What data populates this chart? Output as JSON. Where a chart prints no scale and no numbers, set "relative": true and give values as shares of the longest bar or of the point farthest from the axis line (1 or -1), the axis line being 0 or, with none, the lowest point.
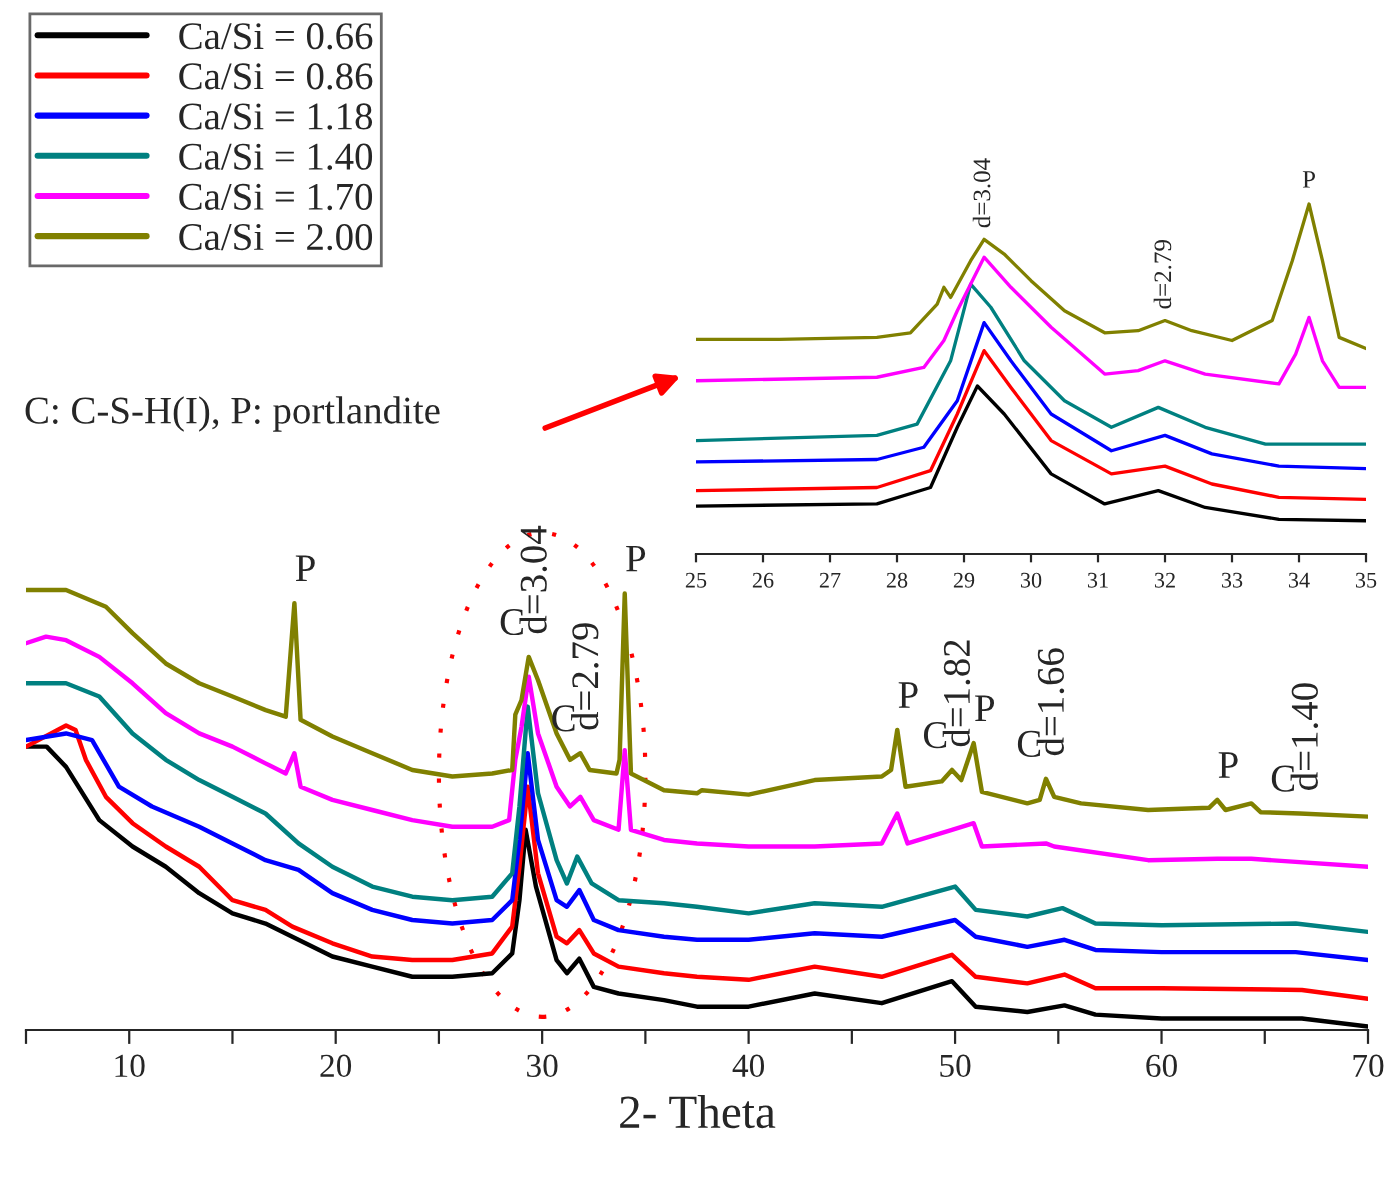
{
  "chart_data": [
    {
      "type": "line",
      "relative": true,
      "xlabel": "2- Theta",
      "xlim": [
        5,
        70
      ],
      "xticks": [
        {
          "value": 5,
          "label": null
        },
        10,
        {
          "value": 15,
          "label": null
        },
        20,
        {
          "value": 25,
          "label": null
        },
        30,
        {
          "value": 35,
          "label": null
        },
        40,
        {
          "value": 45,
          "label": null
        },
        50,
        {
          "value": 55,
          "label": null
        },
        60,
        {
          "value": 65,
          "label": null
        },
        70
      ],
      "legend": "top left",
      "series": [
        {
          "name": "Ca/Si = 0.66",
          "color": "#000000",
          "x": [
            5,
            6,
            6.94,
            8.55,
            10.16,
            11.77,
            13.39,
            15,
            16.6,
            17.9,
            19.84,
            21.77,
            23.71,
            25.65,
            27.58,
            28.55,
            28.9,
            29.2,
            29.7,
            30.7,
            31.2,
            31.8,
            32.5,
            33.7,
            35.9,
            37.5,
            40,
            43.2,
            46.45,
            49.85,
            51,
            53.5,
            55.3,
            56.8,
            60,
            66.8,
            70
          ],
          "values": [
            0.644,
            0.644,
            0.598,
            0.477,
            0.417,
            0.371,
            0.311,
            0.265,
            0.242,
            0.212,
            0.167,
            0.144,
            0.121,
            0.121,
            0.129,
            0.174,
            0.295,
            0.455,
            0.326,
            0.159,
            0.129,
            0.162,
            0.098,
            0.083,
            0.068,
            0.053,
            0.053,
            0.083,
            0.061,
            0.111,
            0.053,
            0.041,
            0.056,
            0.035,
            0.026,
            0.026,
            0.008
          ]
        },
        {
          "name": "Ca/Si = 0.86",
          "color": "#ff0000",
          "x": [
            5,
            6.94,
            7.4,
            7.9,
            8.87,
            10.16,
            11.77,
            13.39,
            15,
            16.6,
            17.9,
            19.84,
            21.77,
            23.71,
            25.65,
            27.58,
            28.55,
            28.9,
            29.3,
            29.8,
            30.7,
            31.2,
            31.8,
            32.5,
            33.7,
            35.9,
            37.5,
            40,
            43.2,
            46.45,
            49.85,
            51,
            53.5,
            55.3,
            56.8,
            60,
            66.8,
            70
          ],
          "values": [
            0.644,
            0.692,
            0.682,
            0.614,
            0.53,
            0.47,
            0.417,
            0.371,
            0.295,
            0.273,
            0.235,
            0.197,
            0.167,
            0.159,
            0.159,
            0.174,
            0.235,
            0.371,
            0.553,
            0.356,
            0.212,
            0.197,
            0.227,
            0.174,
            0.144,
            0.129,
            0.121,
            0.114,
            0.144,
            0.121,
            0.171,
            0.121,
            0.106,
            0.126,
            0.095,
            0.095,
            0.091,
            0.071
          ]
        },
        {
          "name": "Ca/Si = 1.18",
          "color": "#0000ff",
          "x": [
            5,
            6.94,
            8.2,
            9.5,
            11.1,
            13.39,
            15,
            16.6,
            18.2,
            19.84,
            21.77,
            23.71,
            25.65,
            27.58,
            28.55,
            28.9,
            29.3,
            29.8,
            30.7,
            31.2,
            31.8,
            32.5,
            33.7,
            35.9,
            37.5,
            40,
            43.2,
            46.45,
            50,
            51,
            53.5,
            55.3,
            56.8,
            60,
            66.5,
            70
          ],
          "values": [
            0.659,
            0.674,
            0.659,
            0.553,
            0.508,
            0.462,
            0.424,
            0.386,
            0.364,
            0.311,
            0.273,
            0.25,
            0.242,
            0.25,
            0.295,
            0.432,
            0.629,
            0.432,
            0.295,
            0.28,
            0.318,
            0.25,
            0.227,
            0.212,
            0.205,
            0.205,
            0.22,
            0.212,
            0.25,
            0.212,
            0.189,
            0.205,
            0.182,
            0.177,
            0.177,
            0.159
          ]
        },
        {
          "name": "Ca/Si = 1.40",
          "color": "#008080",
          "x": [
            5,
            6.94,
            8.55,
            10.16,
            11.77,
            13.39,
            15,
            16.6,
            18.2,
            19.84,
            21.77,
            23.71,
            25.65,
            27.58,
            28.55,
            28.9,
            29.3,
            29.8,
            30.7,
            31.2,
            31.7,
            32.4,
            33.7,
            35.9,
            37.5,
            40,
            43.2,
            46.45,
            50,
            51,
            53.5,
            55.2,
            56.8,
            60,
            66.5,
            70
          ],
          "values": [
            0.788,
            0.788,
            0.758,
            0.674,
            0.614,
            0.568,
            0.53,
            0.492,
            0.424,
            0.371,
            0.326,
            0.303,
            0.295,
            0.303,
            0.356,
            0.508,
            0.735,
            0.538,
            0.386,
            0.333,
            0.394,
            0.333,
            0.295,
            0.288,
            0.28,
            0.265,
            0.288,
            0.28,
            0.326,
            0.273,
            0.258,
            0.277,
            0.242,
            0.238,
            0.242,
            0.223
          ]
        },
        {
          "name": "Ca/Si = 1.70",
          "color": "#ff00ff",
          "x": [
            5,
            5.97,
            6.94,
            8.55,
            10.16,
            11.77,
            13.39,
            15,
            16.6,
            17.58,
            18,
            18.3,
            19.84,
            21.77,
            23.71,
            25.65,
            27.58,
            28.4,
            28.7,
            29,
            29.35,
            29.8,
            30.7,
            31.35,
            31.85,
            32.5,
            33.7,
            34,
            34.3,
            35.9,
            37.5,
            40,
            43.2,
            46.45,
            47.2,
            47.7,
            49.85,
            50.9,
            51.3,
            54.4,
            54.8,
            59.35,
            62.7,
            64.35,
            70
          ],
          "values": [
            0.879,
            0.894,
            0.886,
            0.848,
            0.788,
            0.72,
            0.674,
            0.644,
            0.606,
            0.583,
            0.629,
            0.553,
            0.523,
            0.5,
            0.477,
            0.462,
            0.462,
            0.477,
            0.614,
            0.689,
            0.803,
            0.674,
            0.553,
            0.508,
            0.53,
            0.477,
            0.455,
            0.636,
            0.455,
            0.432,
            0.424,
            0.417,
            0.417,
            0.424,
            0.492,
            0.424,
            0.455,
            0.47,
            0.417,
            0.424,
            0.417,
            0.386,
            0.389,
            0.389,
            0.371
          ]
        },
        {
          "name": "Ca/Si = 2.00",
          "color": "#808000",
          "x": [
            5,
            6.94,
            8.87,
            10.16,
            11.77,
            13.39,
            15,
            16.61,
            17.58,
            18,
            18.3,
            19.84,
            21.77,
            23.71,
            25.65,
            27.58,
            28.55,
            28.7,
            29,
            29.35,
            29.8,
            30.7,
            31.35,
            31.85,
            32.3,
            33.6,
            33.75,
            34,
            34.3,
            35.9,
            37.5,
            37.74,
            40,
            43.2,
            46.45,
            46.9,
            47.2,
            47.6,
            49.35,
            49.85,
            50.3,
            50.9,
            51.3,
            53.5,
            54.1,
            54.4,
            54.8,
            56.1,
            59.35,
            62.3,
            62.7,
            63.1,
            64.35,
            64.8,
            66.7,
            70
          ],
          "values": [
            1.0,
            1.0,
            0.962,
            0.902,
            0.833,
            0.788,
            0.758,
            0.727,
            0.712,
            0.97,
            0.705,
            0.667,
            0.629,
            0.591,
            0.576,
            0.583,
            0.591,
            0.717,
            0.75,
            0.848,
            0.795,
            0.674,
            0.614,
            0.629,
            0.591,
            0.583,
            0.614,
            0.992,
            0.583,
            0.545,
            0.538,
            0.545,
            0.535,
            0.568,
            0.576,
            0.591,
            0.682,
            0.553,
            0.565,
            0.591,
            0.568,
            0.652,
            0.541,
            0.515,
            0.523,
            0.571,
            0.53,
            0.515,
            0.5,
            0.505,
            0.523,
            0.5,
            0.515,
            0.495,
            0.492,
            0.485
          ]
        }
      ],
      "annotations": [
        {
          "text": "P",
          "x": 18,
          "y": 0.97
        },
        {
          "text": "C",
          "x": 29.35,
          "y": 0.848
        },
        {
          "text": "d=3.04",
          "x": 29.35,
          "y": 0.848
        },
        {
          "text": "C",
          "x": 31.85,
          "y": 0.629
        },
        {
          "text": "d=2.79",
          "x": 31.85,
          "y": 0.629
        },
        {
          "text": "P",
          "x": 34,
          "y": 0.992
        },
        {
          "text": "P",
          "x": 47.2,
          "y": 0.682
        },
        {
          "text": "C",
          "x": 49.85,
          "y": 0.591
        },
        {
          "text": "d=1.82",
          "x": 49.85,
          "y": 0.591
        },
        {
          "text": "P",
          "x": 50.9,
          "y": 0.652
        },
        {
          "text": "C",
          "x": 54.4,
          "y": 0.571
        },
        {
          "text": "d=1.66",
          "x": 54.4,
          "y": 0.571
        },
        {
          "text": "P",
          "x": 62.7,
          "y": 0.523
        },
        {
          "text": "C",
          "x": 66.7,
          "y": 0.492
        },
        {
          "text": "d=1.40",
          "x": 66.7,
          "y": 0.492
        },
        "C: C-S-H(I), P: portlandite"
      ]
    },
    {
      "type": "line",
      "relative": true,
      "xlim": [
        25,
        35
      ],
      "xticks": [
        25,
        26,
        27,
        28,
        29,
        30,
        31,
        32,
        33,
        34,
        35
      ],
      "series": [
        {
          "color": "#000000",
          "x": [
            25,
            27.7,
            28.5,
            28.9,
            29.2,
            29.6,
            30.3,
            31.1,
            31.9,
            32.6,
            33.7,
            35
          ],
          "values": [
            0.137,
            0.143,
            0.19,
            0.362,
            0.48,
            0.4,
            0.229,
            0.143,
            0.181,
            0.133,
            0.099,
            0.095
          ]
        },
        {
          "color": "#ff0000",
          "x": [
            25,
            27.7,
            28.5,
            28.9,
            29.3,
            29.7,
            30.3,
            31.2,
            32.0,
            32.7,
            33.7,
            35
          ],
          "values": [
            0.181,
            0.19,
            0.238,
            0.4,
            0.581,
            0.476,
            0.324,
            0.229,
            0.251,
            0.2,
            0.162,
            0.156
          ]
        },
        {
          "color": "#0000ff",
          "x": [
            25,
            27.7,
            28.4,
            28.9,
            29.3,
            29.7,
            30.3,
            31.2,
            32.0,
            32.7,
            33.7,
            35
          ],
          "values": [
            0.263,
            0.27,
            0.305,
            0.438,
            0.661,
            0.552,
            0.4,
            0.295,
            0.339,
            0.286,
            0.251,
            0.244
          ]
        },
        {
          "color": "#008080",
          "x": [
            25,
            27.7,
            28.3,
            28.8,
            29.1,
            29.4,
            29.9,
            30.5,
            31.2,
            31.9,
            32.6,
            33.5,
            35
          ],
          "values": [
            0.324,
            0.339,
            0.371,
            0.552,
            0.771,
            0.705,
            0.552,
            0.438,
            0.362,
            0.419,
            0.362,
            0.314,
            0.314
          ]
        },
        {
          "color": "#ff00ff",
          "x": [
            25,
            27.7,
            28.4,
            28.7,
            28.9,
            29.3,
            29.7,
            30.3,
            31.1,
            31.6,
            32.0,
            32.6,
            33.7,
            33.95,
            34.15,
            34.35,
            34.6,
            35
          ],
          "values": [
            0.495,
            0.505,
            0.533,
            0.61,
            0.695,
            0.848,
            0.762,
            0.648,
            0.514,
            0.524,
            0.552,
            0.514,
            0.486,
            0.571,
            0.676,
            0.552,
            0.476,
            0.476
          ]
        },
        {
          "color": "#808000",
          "x": [
            25,
            26.24,
            27.7,
            28.2,
            28.6,
            28.7,
            28.8,
            29.1,
            29.3,
            29.6,
            30.0,
            30.5,
            31.1,
            31.6,
            32.0,
            32.4,
            33.0,
            33.6,
            33.9,
            34.15,
            34.35,
            34.6,
            35
          ],
          "values": [
            0.613,
            0.613,
            0.619,
            0.632,
            0.714,
            0.762,
            0.733,
            0.838,
            0.899,
            0.857,
            0.781,
            0.695,
            0.632,
            0.638,
            0.667,
            0.638,
            0.61,
            0.667,
            0.838,
            1.0,
            0.838,
            0.619,
            0.587
          ]
        }
      ],
      "annotations": [
        {
          "text": "d=3.04",
          "x": 29.3,
          "y": 0.899
        },
        {
          "text": "d=2.79",
          "x": 32.0,
          "y": 0.667
        },
        {
          "text": "P",
          "x": 34.15,
          "y": 1.0
        }
      ]
    }
  ]
}
